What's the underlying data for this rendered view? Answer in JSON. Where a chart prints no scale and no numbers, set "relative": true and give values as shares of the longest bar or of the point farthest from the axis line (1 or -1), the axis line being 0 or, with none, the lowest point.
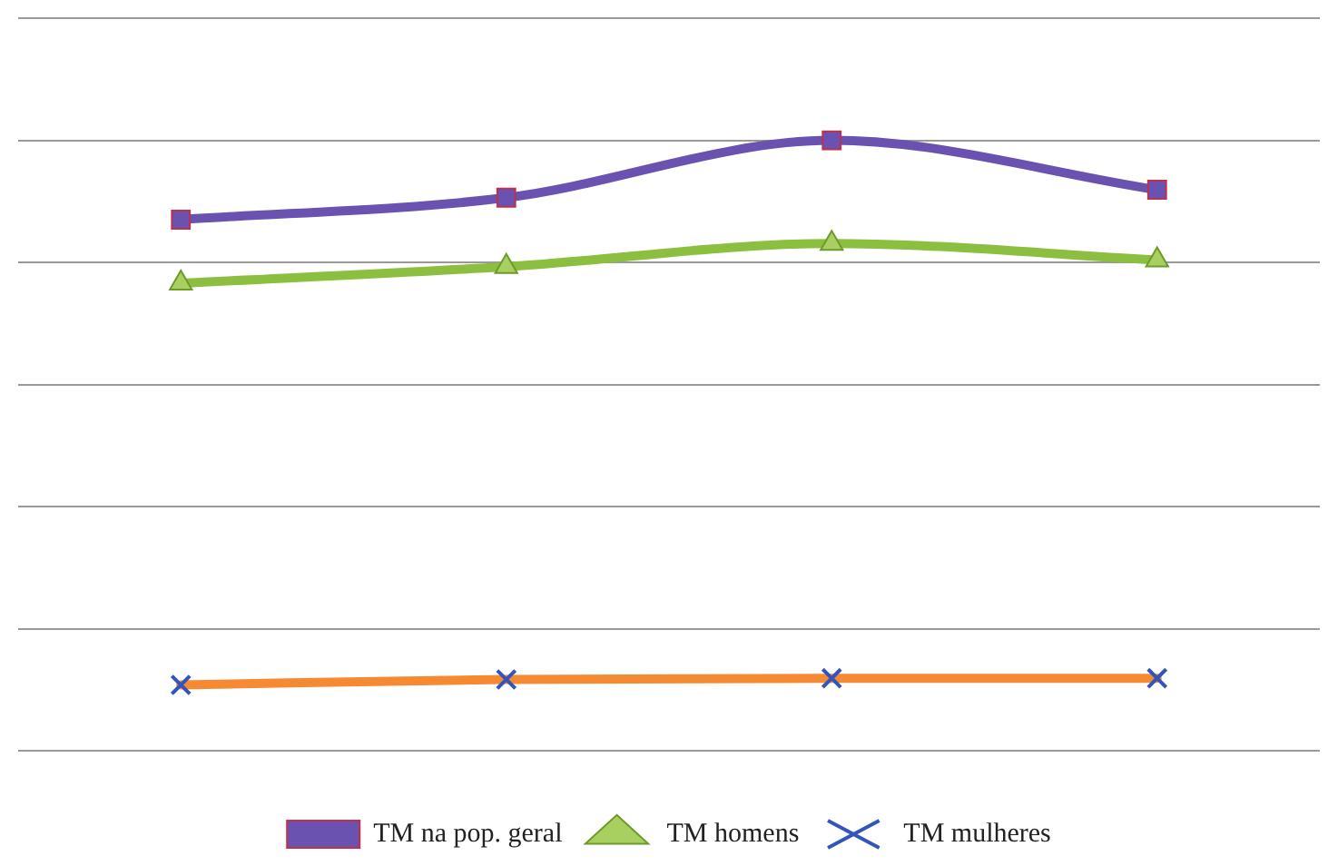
{
  "chart_data": {
    "type": "line",
    "relative": true,
    "categories": [
      null,
      null,
      null,
      null
    ],
    "grid": "y",
    "legend": "bottom",
    "line_style": "solid",
    "series": [
      {
        "name": "TM na pop. geral",
        "color": "#6a52b0",
        "marker": "square",
        "values": [
          0.87,
          0.906,
          1,
          0.919
        ]
      },
      {
        "name": "TM homens",
        "color": "#8cbf3f",
        "marker": "triangle",
        "values": [
          0.766,
          0.793,
          0.831,
          0.804
        ]
      },
      {
        "name": "TM mulheres",
        "color": "#f58a33",
        "marker": "cross",
        "values": [
          0.108,
          0.117,
          0.119,
          0.119
        ]
      }
    ]
  }
}
